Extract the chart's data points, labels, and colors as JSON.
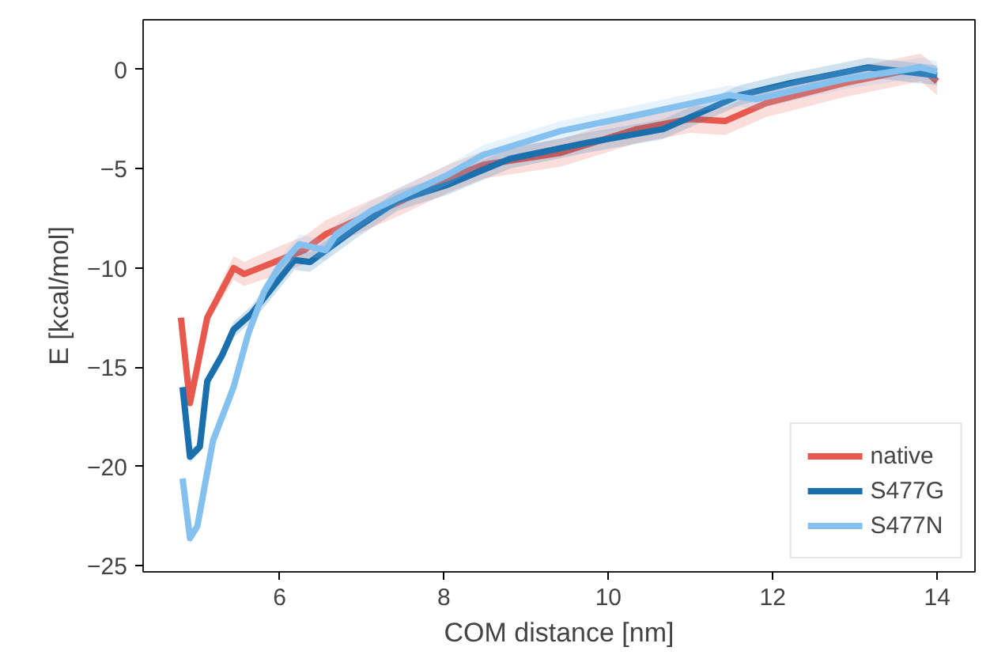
{
  "chart_data": {
    "type": "line",
    "xlabel": "COM distance [nm]",
    "ylabel": "E [kcal/mol]",
    "xlim": [
      4.34,
      14.46
    ],
    "ylim": [
      -25.3,
      2.5
    ],
    "xticks": [
      6,
      8,
      10,
      12,
      14
    ],
    "yticks": [
      -25,
      -20,
      -15,
      -10,
      -5,
      0
    ],
    "grid": false,
    "legend": "bottom right",
    "line_style": "solid",
    "series": [
      {
        "name": "native",
        "color": "#e8584d",
        "x": [
          4.8,
          4.91,
          5.12,
          5.44,
          5.57,
          6.0,
          6.3,
          6.56,
          6.93,
          7.44,
          8.05,
          8.48,
          9.42,
          10.35,
          10.99,
          11.42,
          11.92,
          12.86,
          13.8,
          14.0
        ],
        "values": [
          -12.5,
          -16.8,
          -12.5,
          -10.0,
          -10.3,
          -9.6,
          -9.1,
          -8.3,
          -7.6,
          -6.7,
          -5.5,
          -4.8,
          -4.2,
          -3.0,
          -2.5,
          -2.6,
          -1.7,
          -0.7,
          0.1,
          -0.6
        ],
        "lower": [
          -12.8,
          -17.1,
          -12.8,
          -10.6,
          -10.9,
          -10.3,
          -9.8,
          -9.0,
          -8.3,
          -7.4,
          -6.2,
          -5.5,
          -4.9,
          -3.7,
          -3.2,
          -3.3,
          -2.4,
          -1.4,
          -0.6,
          -1.3
        ],
        "upper": [
          -12.2,
          -16.5,
          -12.2,
          -9.4,
          -9.7,
          -8.9,
          -8.4,
          -7.6,
          -6.9,
          -6.0,
          -4.8,
          -4.1,
          -3.5,
          -2.3,
          -1.8,
          -1.9,
          -1.0,
          0.0,
          0.8,
          0.1
        ]
      },
      {
        "name": "S477G",
        "color": "#1a6fad",
        "x": [
          4.82,
          4.91,
          5.03,
          5.12,
          5.3,
          5.44,
          5.66,
          5.87,
          6.18,
          6.37,
          6.93,
          7.44,
          8.05,
          8.8,
          9.73,
          10.67,
          11.6,
          12.2,
          13.16,
          14.0
        ],
        "values": [
          -16.0,
          -19.5,
          -19.0,
          -15.7,
          -14.4,
          -13.1,
          -12.3,
          -11.2,
          -9.6,
          -9.7,
          -8.0,
          -6.6,
          -5.8,
          -4.5,
          -3.7,
          -3.0,
          -1.3,
          -0.7,
          0.1,
          -0.3
        ],
        "lower": [
          -16.3,
          -19.8,
          -19.3,
          -16.0,
          -14.8,
          -13.5,
          -12.7,
          -11.7,
          -10.1,
          -10.2,
          -8.5,
          -7.1,
          -6.3,
          -5.0,
          -4.2,
          -3.5,
          -1.8,
          -1.2,
          -0.4,
          -0.8
        ],
        "upper": [
          -15.7,
          -19.2,
          -18.7,
          -15.4,
          -14.0,
          -12.7,
          -11.9,
          -10.7,
          -9.1,
          -9.2,
          -7.5,
          -6.1,
          -5.3,
          -4.0,
          -3.2,
          -2.5,
          -0.8,
          -0.2,
          0.6,
          0.2
        ]
      },
      {
        "name": "S477N",
        "color": "#85c1ef",
        "x": [
          4.82,
          4.91,
          5.0,
          5.19,
          5.44,
          5.62,
          5.81,
          6.0,
          6.24,
          6.56,
          6.69,
          7.12,
          8.05,
          8.48,
          9.42,
          10.35,
          11.47,
          11.8,
          12.86,
          13.8,
          14.0
        ],
        "values": [
          -20.6,
          -23.6,
          -23.0,
          -18.7,
          -16.0,
          -13.3,
          -11.2,
          -9.9,
          -8.8,
          -9.1,
          -8.3,
          -7.1,
          -5.3,
          -4.3,
          -3.1,
          -2.3,
          -1.3,
          -1.5,
          -0.5,
          0.1,
          -0.1
        ],
        "lower": [
          -20.9,
          -23.9,
          -23.3,
          -19.0,
          -16.3,
          -13.6,
          -11.6,
          -10.3,
          -9.3,
          -9.6,
          -8.8,
          -7.6,
          -5.8,
          -4.8,
          -3.6,
          -2.8,
          -1.8,
          -2.0,
          -1.0,
          -0.4,
          -0.6
        ],
        "upper": [
          -20.3,
          -23.3,
          -22.7,
          -18.4,
          -15.7,
          -13.0,
          -10.8,
          -9.5,
          -8.3,
          -8.6,
          -7.8,
          -6.6,
          -4.8,
          -3.8,
          -2.6,
          -1.8,
          -0.8,
          -1.0,
          0.0,
          0.6,
          0.4
        ]
      }
    ]
  }
}
